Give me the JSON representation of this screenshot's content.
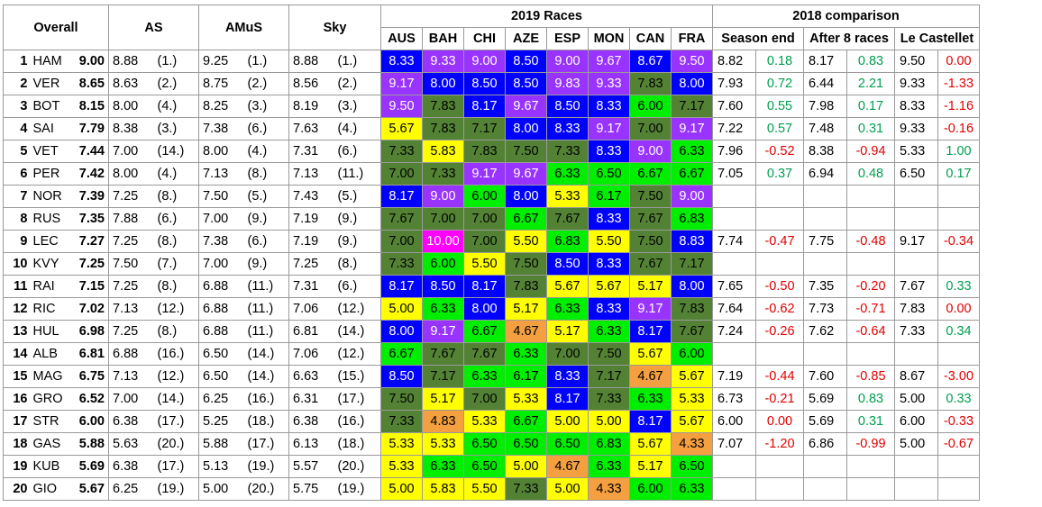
{
  "headers": {
    "overall": "Overall",
    "as": "AS",
    "amus": "AMuS",
    "sky": "Sky",
    "races_group": "2019 Races",
    "comparison_group": "2018 comparison",
    "races": [
      "AUS",
      "BAH",
      "CHI",
      "AZE",
      "ESP",
      "MON",
      "CAN",
      "FRA"
    ],
    "comparison_cols": [
      "Season end",
      "After 8 races",
      "Le Castellet"
    ]
  },
  "color_legend": {
    "10": "#ff00ff",
    "9": "#9933ff",
    "8": "#0000ff",
    "7": "#548235",
    "6": "#00ee00",
    "5": "#ffff00",
    "4": "#f4a040"
  },
  "rows": [
    {
      "rank": "1",
      "driver": "HAM",
      "overall": "9.00",
      "as": "8.88",
      "as_pos": "(1.)",
      "amus": "9.25",
      "amus_pos": "(1.)",
      "sky": "8.88",
      "sky_pos": "(1.)",
      "races": [
        "8.33",
        "9.33",
        "9.00",
        "8.50",
        "9.00",
        "9.67",
        "8.67",
        "9.50"
      ],
      "season_end": "8.82",
      "season_end_diff": "0.18",
      "after8": "8.17",
      "after8_diff": "0.83",
      "castellet": "9.50",
      "castellet_diff": "0.00"
    },
    {
      "rank": "2",
      "driver": "VER",
      "overall": "8.65",
      "as": "8.63",
      "as_pos": "(2.)",
      "amus": "8.75",
      "amus_pos": "(2.)",
      "sky": "8.56",
      "sky_pos": "(2.)",
      "races": [
        "9.17",
        "8.00",
        "8.50",
        "8.50",
        "9.83",
        "9.33",
        "7.83",
        "8.00"
      ],
      "season_end": "7.93",
      "season_end_diff": "0.72",
      "after8": "6.44",
      "after8_diff": "2.21",
      "castellet": "9.33",
      "castellet_diff": "-1.33"
    },
    {
      "rank": "3",
      "driver": "BOT",
      "overall": "8.15",
      "as": "8.00",
      "as_pos": "(4.)",
      "amus": "8.25",
      "amus_pos": "(3.)",
      "sky": "8.19",
      "sky_pos": "(3.)",
      "races": [
        "9.50",
        "7.83",
        "8.17",
        "9.67",
        "8.50",
        "8.33",
        "6.00",
        "7.17"
      ],
      "season_end": "7.60",
      "season_end_diff": "0.55",
      "after8": "7.98",
      "after8_diff": "0.17",
      "castellet": "8.33",
      "castellet_diff": "-1.16"
    },
    {
      "rank": "4",
      "driver": "SAI",
      "overall": "7.79",
      "as": "8.38",
      "as_pos": "(3.)",
      "amus": "7.38",
      "amus_pos": "(6.)",
      "sky": "7.63",
      "sky_pos": "(4.)",
      "races": [
        "5.67",
        "7.83",
        "7.17",
        "8.00",
        "8.33",
        "9.17",
        "7.00",
        "9.17"
      ],
      "season_end": "7.22",
      "season_end_diff": "0.57",
      "after8": "7.48",
      "after8_diff": "0.31",
      "castellet": "9.33",
      "castellet_diff": "-0.16"
    },
    {
      "rank": "5",
      "driver": "VET",
      "overall": "7.44",
      "as": "7.00",
      "as_pos": "(14.)",
      "amus": "8.00",
      "amus_pos": "(4.)",
      "sky": "7.31",
      "sky_pos": "(6.)",
      "races": [
        "7.33",
        "5.83",
        "7.83",
        "7.50",
        "7.33",
        "8.33",
        "9.00",
        "6.33"
      ],
      "season_end": "7.96",
      "season_end_diff": "-0.52",
      "after8": "8.38",
      "after8_diff": "-0.94",
      "castellet": "5.33",
      "castellet_diff": "1.00"
    },
    {
      "rank": "6",
      "driver": "PER",
      "overall": "7.42",
      "as": "8.00",
      "as_pos": "(4.)",
      "amus": "7.13",
      "amus_pos": "(8.)",
      "sky": "7.13",
      "sky_pos": "(11.)",
      "races": [
        "7.00",
        "7.33",
        "9.17",
        "9.67",
        "6.33",
        "6.50",
        "6.67",
        "6.67"
      ],
      "season_end": "7.05",
      "season_end_diff": "0.37",
      "after8": "6.94",
      "after8_diff": "0.48",
      "castellet": "6.50",
      "castellet_diff": "0.17"
    },
    {
      "rank": "7",
      "driver": "NOR",
      "overall": "7.39",
      "as": "7.25",
      "as_pos": "(8.)",
      "amus": "7.50",
      "amus_pos": "(5.)",
      "sky": "7.43",
      "sky_pos": "(5.)",
      "races": [
        "8.17",
        "9.00",
        "6.00",
        "8.00",
        "5.33",
        "6.17",
        "7.50",
        "9.00"
      ],
      "season_end": "",
      "season_end_diff": "",
      "after8": "",
      "after8_diff": "",
      "castellet": "",
      "castellet_diff": ""
    },
    {
      "rank": "8",
      "driver": "RUS",
      "overall": "7.35",
      "as": "7.88",
      "as_pos": "(6.)",
      "amus": "7.00",
      "amus_pos": "(9.)",
      "sky": "7.19",
      "sky_pos": "(9.)",
      "races": [
        "7.67",
        "7.00",
        "7.00",
        "6.67",
        "7.67",
        "8.33",
        "7.67",
        "6.83"
      ],
      "season_end": "",
      "season_end_diff": "",
      "after8": "",
      "after8_diff": "",
      "castellet": "",
      "castellet_diff": ""
    },
    {
      "rank": "9",
      "driver": "LEC",
      "overall": "7.27",
      "as": "7.25",
      "as_pos": "(8.)",
      "amus": "7.38",
      "amus_pos": "(6.)",
      "sky": "7.19",
      "sky_pos": "(9.)",
      "races": [
        "7.00",
        "10.00",
        "7.00",
        "5.50",
        "6.83",
        "5.50",
        "7.50",
        "8.83"
      ],
      "season_end": "7.74",
      "season_end_diff": "-0.47",
      "after8": "7.75",
      "after8_diff": "-0.48",
      "castellet": "9.17",
      "castellet_diff": "-0.34"
    },
    {
      "rank": "10",
      "driver": "KVY",
      "overall": "7.25",
      "as": "7.50",
      "as_pos": "(7.)",
      "amus": "7.00",
      "amus_pos": "(9.)",
      "sky": "7.25",
      "sky_pos": "(8.)",
      "races": [
        "7.33",
        "6.00",
        "5.50",
        "7.50",
        "8.50",
        "8.33",
        "7.67",
        "7.17"
      ],
      "season_end": "",
      "season_end_diff": "",
      "after8": "",
      "after8_diff": "",
      "castellet": "",
      "castellet_diff": ""
    },
    {
      "rank": "11",
      "driver": "RAI",
      "overall": "7.15",
      "as": "7.25",
      "as_pos": "(8.)",
      "amus": "6.88",
      "amus_pos": "(11.)",
      "sky": "7.31",
      "sky_pos": "(6.)",
      "races": [
        "8.17",
        "8.50",
        "8.17",
        "7.83",
        "5.67",
        "5.67",
        "5.17",
        "8.00"
      ],
      "season_end": "7.65",
      "season_end_diff": "-0.50",
      "after8": "7.35",
      "after8_diff": "-0.20",
      "castellet": "7.67",
      "castellet_diff": "0.33"
    },
    {
      "rank": "12",
      "driver": "RIC",
      "overall": "7.02",
      "as": "7.13",
      "as_pos": "(12.)",
      "amus": "6.88",
      "amus_pos": "(11.)",
      "sky": "7.06",
      "sky_pos": "(12.)",
      "races": [
        "5.00",
        "6.33",
        "8.00",
        "5.17",
        "6.33",
        "8.33",
        "9.17",
        "7.83"
      ],
      "season_end": "7.64",
      "season_end_diff": "-0.62",
      "after8": "7.73",
      "after8_diff": "-0.71",
      "castellet": "7.83",
      "castellet_diff": "0.00"
    },
    {
      "rank": "13",
      "driver": "HUL",
      "overall": "6.98",
      "as": "7.25",
      "as_pos": "(8.)",
      "amus": "6.88",
      "amus_pos": "(11.)",
      "sky": "6.81",
      "sky_pos": "(14.)",
      "races": [
        "8.00",
        "9.17",
        "6.67",
        "4.67",
        "5.17",
        "6.33",
        "8.17",
        "7.67"
      ],
      "season_end": "7.24",
      "season_end_diff": "-0.26",
      "after8": "7.62",
      "after8_diff": "-0.64",
      "castellet": "7.33",
      "castellet_diff": "0.34"
    },
    {
      "rank": "14",
      "driver": "ALB",
      "overall": "6.81",
      "as": "6.88",
      "as_pos": "(16.)",
      "amus": "6.50",
      "amus_pos": "(14.)",
      "sky": "7.06",
      "sky_pos": "(12.)",
      "races": [
        "6.67",
        "7.67",
        "7.67",
        "6.33",
        "7.00",
        "7.50",
        "5.67",
        "6.00"
      ],
      "season_end": "",
      "season_end_diff": "",
      "after8": "",
      "after8_diff": "",
      "castellet": "",
      "castellet_diff": ""
    },
    {
      "rank": "15",
      "driver": "MAG",
      "overall": "6.75",
      "as": "7.13",
      "as_pos": "(12.)",
      "amus": "6.50",
      "amus_pos": "(14.)",
      "sky": "6.63",
      "sky_pos": "(15.)",
      "races": [
        "8.50",
        "7.17",
        "6.33",
        "6.17",
        "8.33",
        "7.17",
        "4.67",
        "5.67"
      ],
      "season_end": "7.19",
      "season_end_diff": "-0.44",
      "after8": "7.60",
      "after8_diff": "-0.85",
      "castellet": "8.67",
      "castellet_diff": "-3.00"
    },
    {
      "rank": "16",
      "driver": "GRO",
      "overall": "6.52",
      "as": "7.00",
      "as_pos": "(14.)",
      "amus": "6.25",
      "amus_pos": "(16.)",
      "sky": "6.31",
      "sky_pos": "(17.)",
      "races": [
        "7.50",
        "5.17",
        "7.00",
        "5.33",
        "8.17",
        "7.33",
        "6.33",
        "5.33"
      ],
      "season_end": "6.73",
      "season_end_diff": "-0.21",
      "after8": "5.69",
      "after8_diff": "0.83",
      "castellet": "5.00",
      "castellet_diff": "0.33"
    },
    {
      "rank": "17",
      "driver": "STR",
      "overall": "6.00",
      "as": "6.38",
      "as_pos": "(17.)",
      "amus": "5.25",
      "amus_pos": "(18.)",
      "sky": "6.38",
      "sky_pos": "(16.)",
      "races": [
        "7.33",
        "4.83",
        "5.33",
        "6.67",
        "5.00",
        "5.00",
        "8.17",
        "5.67"
      ],
      "season_end": "6.00",
      "season_end_diff": "0.00",
      "after8": "5.69",
      "after8_diff": "0.31",
      "castellet": "6.00",
      "castellet_diff": "-0.33"
    },
    {
      "rank": "18",
      "driver": "GAS",
      "overall": "5.88",
      "as": "5.63",
      "as_pos": "(20.)",
      "amus": "5.88",
      "amus_pos": "(17.)",
      "sky": "6.13",
      "sky_pos": "(18.)",
      "races": [
        "5.33",
        "5.33",
        "6.50",
        "6.50",
        "6.50",
        "6.83",
        "5.67",
        "4.33"
      ],
      "season_end": "7.07",
      "season_end_diff": "-1.20",
      "after8": "6.86",
      "after8_diff": "-0.99",
      "castellet": "5.00",
      "castellet_diff": "-0.67"
    },
    {
      "rank": "19",
      "driver": "KUB",
      "overall": "5.69",
      "as": "6.38",
      "as_pos": "(17.)",
      "amus": "5.13",
      "amus_pos": "(19.)",
      "sky": "5.57",
      "sky_pos": "(20.)",
      "races": [
        "5.33",
        "6.33",
        "6.50",
        "5.00",
        "4.67",
        "6.33",
        "5.17",
        "6.50"
      ],
      "season_end": "",
      "season_end_diff": "",
      "after8": "",
      "after8_diff": "",
      "castellet": "",
      "castellet_diff": ""
    },
    {
      "rank": "20",
      "driver": "GIO",
      "overall": "5.67",
      "as": "6.25",
      "as_pos": "(19.)",
      "amus": "5.00",
      "amus_pos": "(20.)",
      "sky": "5.75",
      "sky_pos": "(19.)",
      "races": [
        "5.00",
        "5.83",
        "5.50",
        "7.33",
        "5.00",
        "4.33",
        "6.00",
        "6.33"
      ],
      "season_end": "",
      "season_end_diff": "",
      "after8": "",
      "after8_diff": "",
      "castellet": "",
      "castellet_diff": ""
    }
  ]
}
